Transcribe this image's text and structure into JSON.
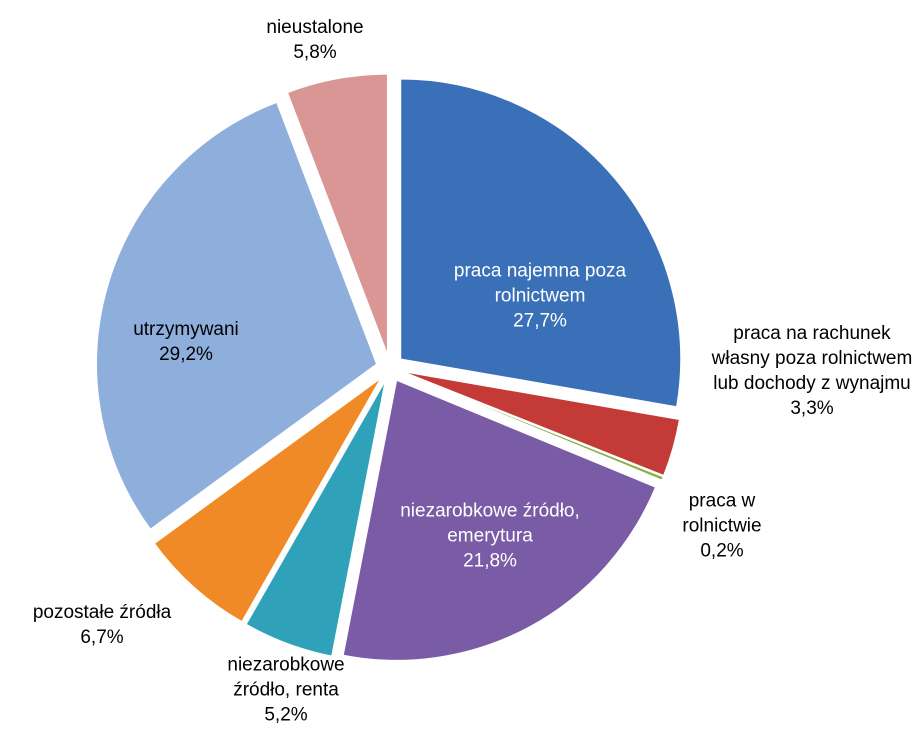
{
  "chart_data": {
    "type": "pie",
    "categories": [
      "praca najemna poza rolnictwem",
      "praca na rachunek własny poza rolnictwem lub dochody z wynajmu",
      "praca w rolnictwie",
      "niezarobkowe źródło, emerytura",
      "niezarobkowe źródło, renta",
      "pozostałe źródła",
      "utrzymywani",
      "nieustalone"
    ],
    "values": [
      27.7,
      3.3,
      0.2,
      21.8,
      5.2,
      6.7,
      29.2,
      5.8
    ],
    "value_labels": [
      "27,7%",
      "3,3%",
      "0,2%",
      "21,8%",
      "5,2%",
      "6,7%",
      "29,2%",
      "5,8%"
    ],
    "colors": [
      "#3a70b8",
      "#c33a36",
      "#8ab04a",
      "#7a5ba6",
      "#2fa2b9",
      "#f08a26",
      "#8eafdc",
      "#da9694"
    ]
  }
}
